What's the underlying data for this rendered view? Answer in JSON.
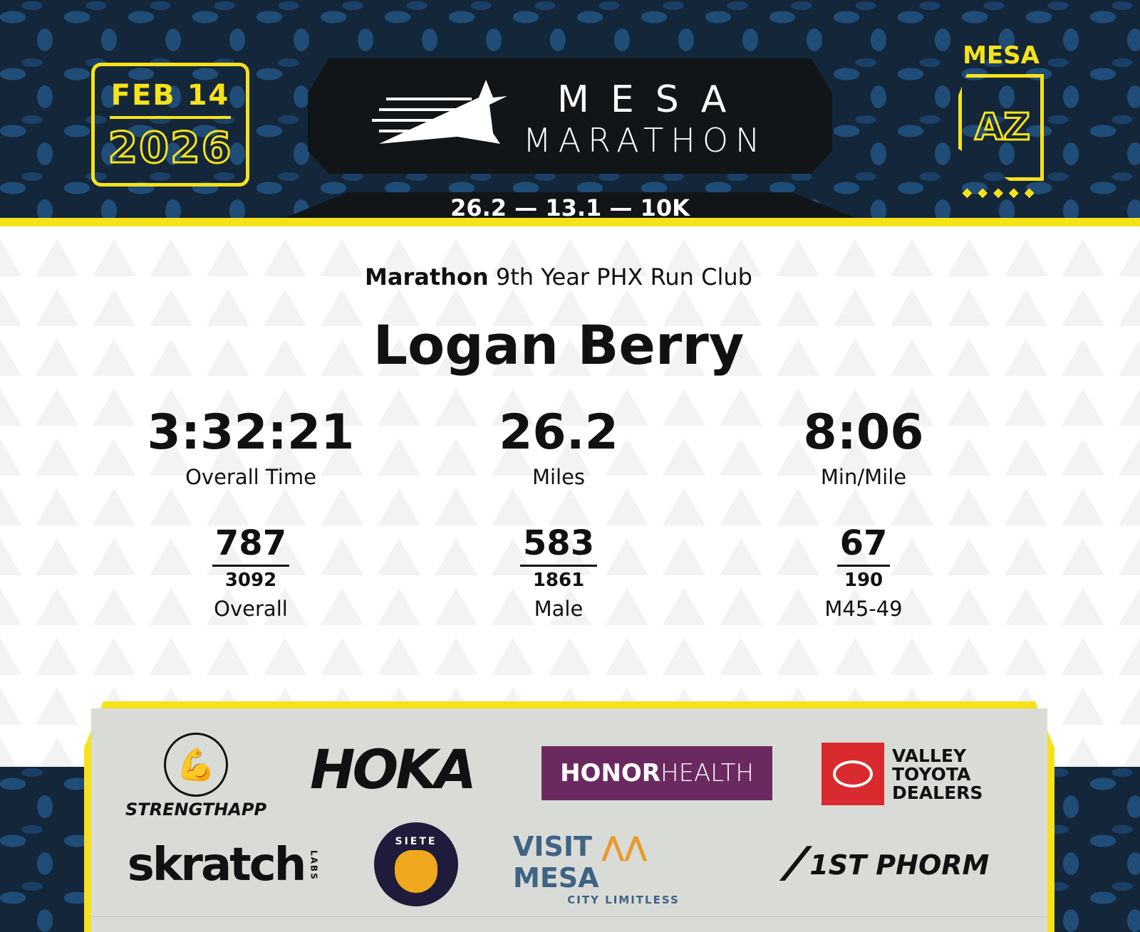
{
  "header": {
    "date": "FEB 14",
    "year": "2026",
    "logo_line1": "MESA",
    "logo_line2": "MARATHON",
    "distances": "26.2 — 13.1 — 10K",
    "state_city": "MESA",
    "state_abbr": "AZ",
    "dots": "◆◆◆◆◆"
  },
  "result": {
    "race": "Marathon",
    "team": "9th Year PHX Run Club",
    "name": "Logan Berry",
    "stats": [
      {
        "value": "3:32:21",
        "label": "Overall Time"
      },
      {
        "value": "26.2",
        "label": "Miles"
      },
      {
        "value": "8:06",
        "label": "Min/Mile"
      }
    ],
    "ranks": [
      {
        "place": "787",
        "total": "3092",
        "label": "Overall"
      },
      {
        "place": "583",
        "total": "1861",
        "label": "Male"
      },
      {
        "place": "67",
        "total": "190",
        "label": "M45-49"
      }
    ]
  },
  "sponsors": {
    "strengthapp": "STRENGTHAPP",
    "hoka": "HOKA",
    "honor": "HONOR",
    "health": "HEALTH",
    "toyota": "VALLEY TOYOTA DEALERS",
    "skratch": "skratch",
    "skratch_labs": "LABS",
    "siete": "SIETE",
    "visit": "VISIT",
    "mesa": "MESA",
    "city_limitless": "CITY LIMITLESS",
    "phorm": "1ST PHORM"
  },
  "colors": {
    "accent": "#f6e21b",
    "navy": "#14263a",
    "honorhealth": "#6b2a5f",
    "toyota": "#d92b2f",
    "visitmesa": "#3e6384"
  }
}
